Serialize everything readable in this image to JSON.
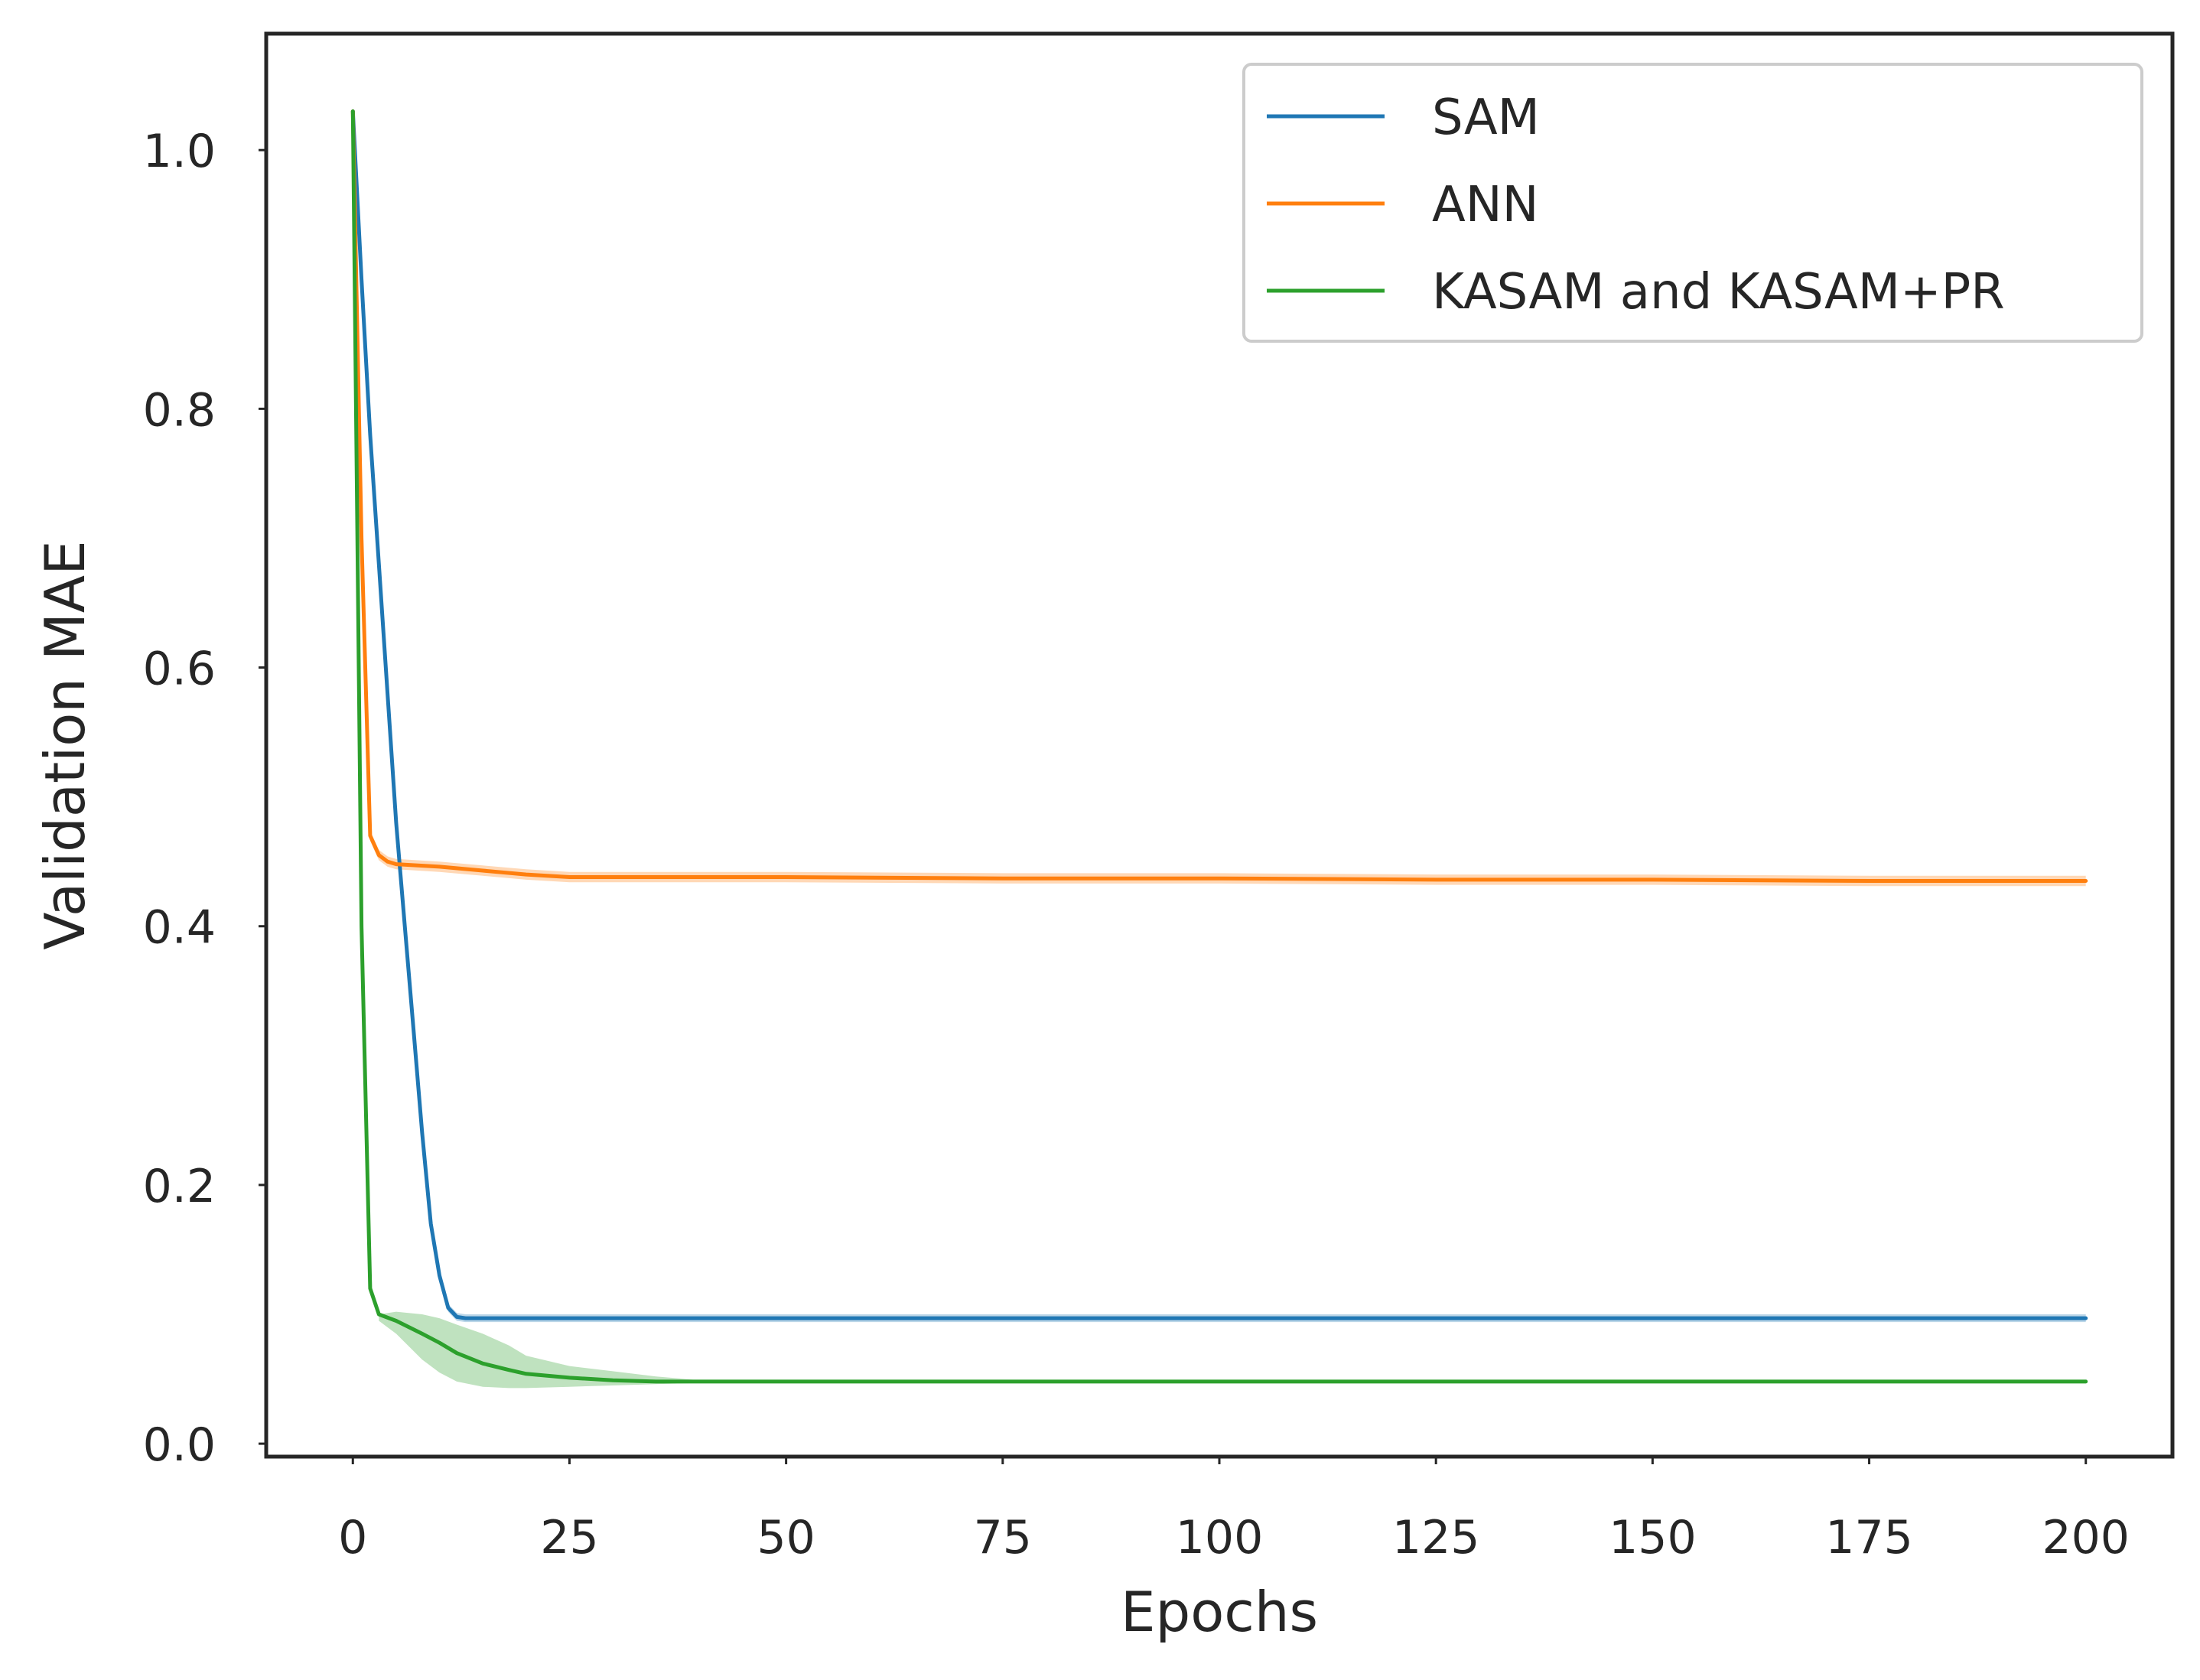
{
  "chart_data": {
    "type": "line",
    "title": "",
    "xlabel": "Epochs",
    "ylabel": "Validation MAE",
    "xlim": [
      -10,
      210
    ],
    "ylim": [
      -0.01,
      1.09
    ],
    "xticks": [
      0,
      25,
      50,
      75,
      100,
      125,
      150,
      175,
      200
    ],
    "yticks": [
      0.0,
      0.2,
      0.4,
      0.6,
      0.8,
      1.0
    ],
    "xtick_labels": [
      "0",
      "25",
      "50",
      "75",
      "100",
      "125",
      "150",
      "175",
      "200"
    ],
    "ytick_labels": [
      "0.0",
      "0.2",
      "0.4",
      "0.6",
      "0.8",
      "1.0"
    ],
    "grid": false,
    "legend_position": "top-right",
    "series": [
      {
        "name": "SAM",
        "color": "#1f77b4",
        "x": [
          0,
          1,
          2,
          3,
          4,
          5,
          6,
          7,
          8,
          9,
          10,
          11,
          12,
          13,
          15,
          20,
          30,
          50,
          100,
          150,
          200
        ],
        "y": [
          1.03,
          0.9,
          0.78,
          0.68,
          0.58,
          0.48,
          0.4,
          0.32,
          0.24,
          0.17,
          0.13,
          0.105,
          0.098,
          0.097,
          0.097,
          0.097,
          0.097,
          0.097,
          0.097,
          0.097,
          0.097
        ],
        "band": 0.003
      },
      {
        "name": "ANN",
        "color": "#ff7f0e",
        "x": [
          0,
          1,
          2,
          3,
          4,
          5,
          10,
          15,
          20,
          25,
          30,
          50,
          75,
          100,
          125,
          150,
          175,
          200
        ],
        "y": [
          1.03,
          0.7,
          0.47,
          0.455,
          0.45,
          0.448,
          0.446,
          0.443,
          0.44,
          0.438,
          0.438,
          0.438,
          0.437,
          0.437,
          0.436,
          0.436,
          0.435,
          0.435
        ],
        "band": 0.004
      },
      {
        "name": "KASAM and KASAM+PR",
        "color": "#2ca02c",
        "x": [
          0,
          1,
          2,
          3,
          5,
          8,
          10,
          12,
          15,
          18,
          20,
          25,
          30,
          35,
          40,
          50,
          75,
          100,
          125,
          150,
          175,
          200
        ],
        "y": [
          1.03,
          0.4,
          0.12,
          0.1,
          0.095,
          0.085,
          0.078,
          0.07,
          0.062,
          0.057,
          0.054,
          0.051,
          0.049,
          0.048,
          0.048,
          0.048,
          0.048,
          0.048,
          0.048,
          0.048,
          0.048,
          0.048
        ],
        "band_x": [
          3,
          5,
          8,
          10,
          12,
          15,
          18,
          20,
          25,
          30,
          35,
          40
        ],
        "band_lo": [
          0.095,
          0.085,
          0.065,
          0.055,
          0.048,
          0.044,
          0.043,
          0.043,
          0.044,
          0.045,
          0.046,
          0.047
        ],
        "band_hi": [
          0.1,
          0.102,
          0.1,
          0.097,
          0.092,
          0.085,
          0.076,
          0.068,
          0.06,
          0.056,
          0.052,
          0.049
        ]
      }
    ]
  }
}
